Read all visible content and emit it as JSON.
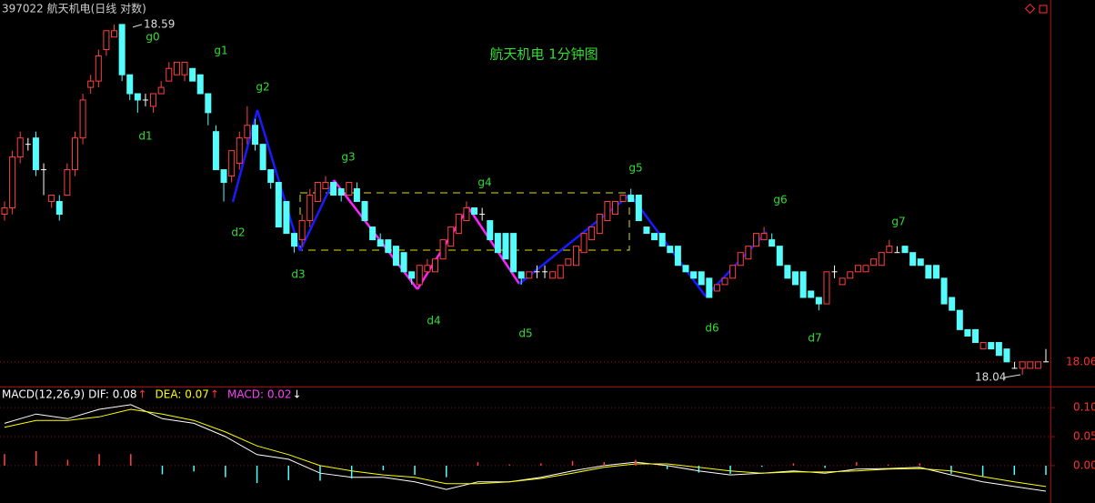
{
  "chart_data": [
    {
      "type": "candlestick",
      "title": "397022 航天机电(日线 对数)",
      "annotation": "航天机电 1分钟图",
      "log_scale": true,
      "ylim": [
        18.026,
        18.6
      ],
      "colors": {
        "up": "#ff4040",
        "down": "#54fcfc",
        "flat": "#ffffff"
      },
      "open": [
        18.29,
        18.3,
        18.38,
        18.4,
        18.41,
        18.36,
        18.31,
        18.31,
        18.32,
        18.36,
        18.41,
        18.49,
        18.5,
        18.55,
        18.57,
        18.59,
        18.51,
        18.48,
        18.47,
        18.46,
        18.48,
        18.5,
        18.51,
        18.51,
        18.52,
        18.51,
        18.48,
        18.42,
        18.36,
        18.35,
        18.37,
        18.41,
        18.43,
        18.4,
        18.36,
        18.34,
        18.31,
        18.26,
        18.25,
        18.28,
        18.31,
        18.33,
        18.34,
        18.33,
        18.32,
        18.33,
        18.31,
        18.27,
        18.25,
        18.25,
        18.24,
        18.23,
        18.2,
        18.18,
        18.2,
        18.2,
        18.22,
        18.24,
        18.26,
        18.28,
        18.3,
        18.29,
        18.28,
        18.26,
        18.26,
        18.26,
        18.2,
        18.19,
        18.2,
        18.2,
        18.19,
        18.19,
        18.21,
        18.21,
        18.23,
        18.25,
        18.26,
        18.28,
        18.29,
        18.31,
        18.32,
        18.32,
        18.27,
        18.26,
        18.26,
        18.24,
        18.24,
        18.21,
        18.2,
        18.2,
        18.19,
        18.17,
        18.18,
        18.19,
        18.21,
        18.22,
        18.24,
        18.25,
        18.25,
        18.24,
        18.21,
        18.2,
        18.2,
        18.17,
        18.16,
        18.15,
        18.2,
        18.18,
        18.19,
        18.2,
        18.2,
        18.21,
        18.21,
        18.23,
        18.23,
        18.24,
        18.23,
        18.22,
        18.21,
        18.21,
        18.19,
        18.16,
        18.14,
        18.11,
        18.11,
        18.08,
        18.09,
        18.09,
        18.08,
        18.05,
        18.05,
        18.05,
        18.05,
        18.06
      ],
      "high": [
        18.31,
        18.39,
        18.42,
        18.41,
        18.42,
        18.37,
        18.32,
        18.32,
        18.37,
        18.42,
        18.48,
        18.51,
        18.55,
        18.58,
        18.59,
        18.59,
        18.51,
        18.48,
        18.48,
        18.48,
        18.5,
        18.53,
        18.53,
        18.53,
        18.52,
        18.51,
        18.48,
        18.43,
        18.36,
        18.39,
        18.42,
        18.46,
        18.44,
        18.4,
        18.36,
        18.34,
        18.31,
        18.26,
        18.29,
        18.33,
        18.34,
        18.35,
        18.34,
        18.33,
        18.34,
        18.34,
        18.31,
        18.27,
        18.26,
        18.25,
        18.24,
        18.23,
        18.2,
        18.21,
        18.22,
        18.22,
        18.25,
        18.27,
        18.29,
        18.31,
        18.3,
        18.3,
        18.28,
        18.26,
        18.26,
        18.26,
        18.2,
        18.2,
        18.21,
        18.21,
        18.2,
        18.21,
        18.22,
        18.24,
        18.26,
        18.27,
        18.29,
        18.31,
        18.31,
        18.32,
        18.33,
        18.32,
        18.27,
        18.26,
        18.26,
        18.24,
        18.24,
        18.21,
        18.2,
        18.2,
        18.19,
        18.18,
        18.19,
        18.21,
        18.23,
        18.24,
        18.26,
        18.27,
        18.26,
        18.24,
        18.21,
        18.2,
        18.2,
        18.17,
        18.16,
        18.2,
        18.21,
        18.19,
        18.2,
        18.21,
        18.21,
        18.22,
        18.23,
        18.25,
        18.24,
        18.24,
        18.23,
        18.22,
        18.21,
        18.21,
        18.19,
        18.16,
        18.14,
        18.11,
        18.11,
        18.09,
        18.09,
        18.09,
        18.08,
        18.06,
        18.06,
        18.06,
        18.06,
        18.08
      ],
      "low": [
        18.28,
        18.29,
        18.37,
        18.39,
        18.35,
        18.32,
        18.3,
        18.28,
        18.32,
        18.35,
        18.4,
        18.48,
        18.49,
        18.54,
        18.57,
        18.5,
        18.47,
        18.45,
        18.46,
        18.45,
        18.48,
        18.5,
        18.51,
        18.5,
        18.5,
        18.48,
        18.43,
        18.36,
        18.31,
        18.34,
        18.36,
        18.4,
        18.39,
        18.36,
        18.33,
        18.27,
        18.26,
        18.23,
        18.24,
        18.27,
        18.31,
        18.33,
        18.32,
        18.31,
        18.32,
        18.31,
        18.28,
        18.25,
        18.24,
        18.23,
        18.21,
        18.2,
        18.18,
        18.18,
        18.2,
        18.2,
        18.22,
        18.24,
        18.26,
        18.28,
        18.29,
        18.28,
        18.25,
        18.23,
        18.22,
        18.2,
        18.18,
        18.19,
        18.19,
        18.19,
        18.19,
        18.19,
        18.21,
        18.21,
        18.23,
        18.25,
        18.26,
        18.28,
        18.29,
        18.31,
        18.31,
        18.28,
        18.26,
        18.25,
        18.24,
        18.23,
        18.21,
        18.2,
        18.19,
        18.18,
        18.16,
        18.17,
        18.18,
        18.19,
        18.21,
        18.22,
        18.24,
        18.25,
        18.24,
        18.21,
        18.19,
        18.18,
        18.16,
        18.16,
        18.14,
        18.15,
        18.19,
        18.18,
        18.19,
        18.2,
        18.2,
        18.21,
        18.21,
        18.23,
        18.23,
        18.23,
        18.21,
        18.21,
        18.19,
        18.19,
        18.15,
        18.14,
        18.11,
        18.1,
        18.09,
        18.08,
        18.08,
        18.07,
        18.06,
        18.05,
        18.04,
        18.05,
        18.05,
        18.06
      ],
      "close": [
        18.3,
        18.38,
        18.41,
        18.4,
        18.36,
        18.36,
        18.32,
        18.29,
        18.36,
        18.41,
        18.47,
        18.5,
        18.54,
        18.58,
        18.58,
        18.51,
        18.48,
        18.47,
        18.47,
        18.48,
        18.49,
        18.52,
        18.53,
        18.53,
        18.5,
        18.48,
        18.45,
        18.36,
        18.34,
        18.39,
        18.41,
        18.43,
        18.4,
        18.36,
        18.34,
        18.27,
        18.26,
        18.24,
        18.28,
        18.32,
        18.34,
        18.34,
        18.32,
        18.32,
        18.34,
        18.31,
        18.28,
        18.25,
        18.24,
        18.23,
        18.21,
        18.2,
        18.19,
        18.21,
        18.21,
        18.22,
        18.25,
        18.27,
        18.29,
        18.3,
        18.29,
        18.29,
        18.25,
        18.23,
        18.22,
        18.2,
        18.19,
        18.2,
        18.2,
        18.2,
        18.2,
        18.21,
        18.22,
        18.24,
        18.26,
        18.27,
        18.29,
        18.31,
        18.31,
        18.32,
        18.31,
        18.28,
        18.26,
        18.25,
        18.24,
        18.23,
        18.21,
        18.2,
        18.19,
        18.18,
        18.16,
        18.18,
        18.19,
        18.21,
        18.23,
        18.24,
        18.26,
        18.26,
        18.24,
        18.21,
        18.19,
        18.18,
        18.16,
        18.16,
        18.15,
        18.2,
        18.2,
        18.19,
        18.2,
        18.21,
        18.21,
        18.22,
        18.23,
        18.24,
        18.23,
        18.23,
        18.21,
        18.21,
        18.19,
        18.19,
        18.15,
        18.14,
        18.11,
        18.1,
        18.09,
        18.09,
        18.08,
        18.07,
        18.06,
        18.05,
        18.06,
        18.06,
        18.06,
        18.06
      ],
      "high_mark": 18.59,
      "low_mark": 18.04,
      "last_price": 18.06,
      "wave_labels": [
        "g0",
        "g1",
        "g2",
        "g3",
        "g4",
        "g5",
        "g6",
        "g7",
        "d1",
        "d2",
        "d3",
        "d4",
        "d5",
        "d6",
        "d7"
      ]
    },
    {
      "type": "macd",
      "legend": [
        {
          "text": "MACD(12,26,9)",
          "color": "#ffffff"
        },
        {
          "text": "DIF: 0.08",
          "color": "#ffffff",
          "arrow": "↑",
          "arrow_color": "#ff3030"
        },
        {
          "text": "DEA: 0.07",
          "color": "#ffff00",
          "arrow": "↑",
          "arrow_color": "#ff3030"
        },
        {
          "text": "MACD: 0.02",
          "color": "#ff40ff",
          "arrow": "↓",
          "arrow_color": "#ffffff"
        }
      ],
      "series": [
        {
          "color": "#ffffff",
          "values": [
            0.073,
            0.089,
            0.081,
            0.097,
            0.105,
            0.081,
            0.073,
            0.05,
            0.019,
            0.011,
            -0.013,
            -0.02,
            -0.02,
            -0.028,
            -0.041,
            -0.028,
            -0.028,
            -0.02,
            -0.009,
            0,
            0.006,
            0,
            -0.009,
            -0.016,
            -0.013,
            -0.009,
            -0.013,
            -0.006,
            -0.005,
            -0.003,
            -0.016,
            -0.028,
            -0.036,
            -0.044
          ]
        },
        {
          "color": "#ffff00",
          "values": [
            0.066,
            0.078,
            0.078,
            0.084,
            0.097,
            0.089,
            0.078,
            0.058,
            0.034,
            0.019,
            0,
            -0.009,
            -0.016,
            -0.02,
            -0.031,
            -0.031,
            -0.028,
            -0.022,
            -0.013,
            -0.003,
            0.003,
            0.003,
            -0.003,
            -0.009,
            -0.013,
            -0.011,
            -0.011,
            -0.009,
            -0.006,
            -0.005,
            -0.009,
            -0.019,
            -0.028,
            -0.036
          ]
        },
        {
          "type": "histogram",
          "up_color": "#ff4040",
          "down_color": "#54fcfc",
          "values": [
            0.02,
            0.025,
            0.01,
            0.02,
            0.02,
            -0.015,
            -0.01,
            -0.02,
            -0.03,
            -0.025,
            -0.026,
            -0.022,
            -0.008,
            -0.016,
            -0.02,
            0.006,
            0.002,
            0.004,
            0.008,
            0.006,
            0.01,
            -0.006,
            -0.012,
            -0.014,
            -0.002,
            0.004,
            -0.004,
            0.006,
            0.002,
            0.004,
            -0.014,
            -0.018,
            -0.016,
            -0.016
          ]
        }
      ],
      "ylim": [
        -0.055,
        0.13
      ],
      "yticks": [
        {
          "value": 0.1,
          "label": "0.10"
        },
        {
          "value": 0.05,
          "label": "0.05"
        },
        {
          "value": 0,
          "label": "0.00"
        }
      ],
      "grid": true
    }
  ]
}
